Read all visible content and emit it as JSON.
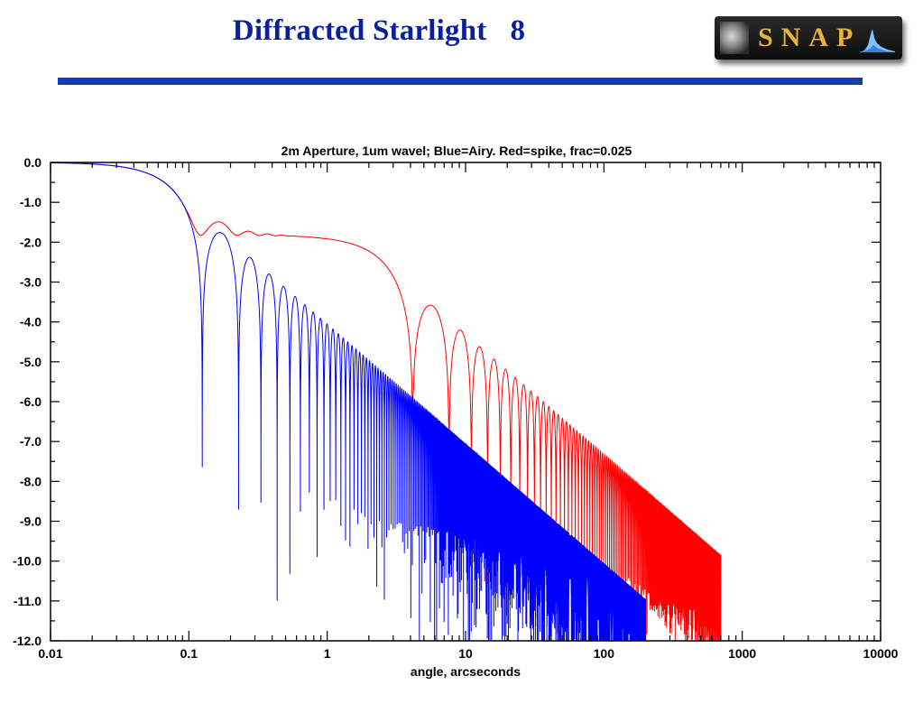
{
  "slide": {
    "title": "Diffracted Starlight",
    "page_number": "8",
    "logo_text": "SNAP"
  },
  "chart_data": {
    "type": "line",
    "title": "2m Aperture, 1um wavel; Blue=Airy. Red=spike, frac=0.025",
    "xlabel": "angle, arcseconds",
    "ylabel": "",
    "x_scale": "log",
    "xlim": [
      0.01,
      10000
    ],
    "ylim": [
      -12.0,
      0.0
    ],
    "x_ticks": [
      "0.01",
      "0.1",
      "1",
      "10",
      "100",
      "1000",
      "10000"
    ],
    "y_ticks": [
      "0.0",
      "-1.0",
      "-2.0",
      "-3.0",
      "-4.0",
      "-5.0",
      "-6.0",
      "-7.0",
      "-8.0",
      "-9.0",
      "-10.0",
      "-11.0",
      "-12.0"
    ],
    "grid": false,
    "series": [
      {
        "name": "Airy",
        "color": "#0000ff",
        "aperture_m": 2,
        "wavelength_um": 1,
        "x_max": 200
      },
      {
        "name": "spike",
        "color": "#ff0000",
        "frac": 0.025,
        "x_max": 700
      }
    ]
  }
}
